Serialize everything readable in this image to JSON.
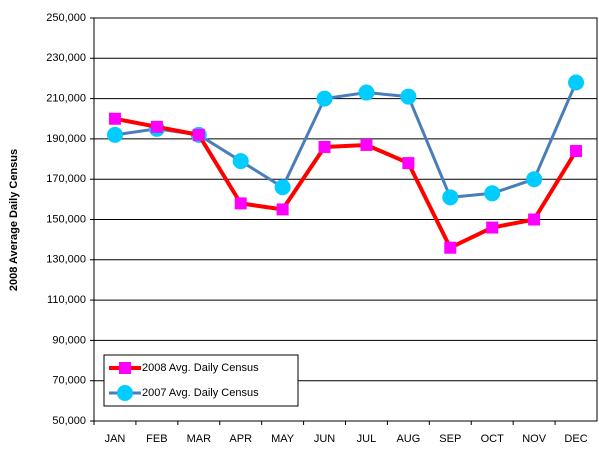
{
  "chart_data": {
    "type": "line",
    "ylabel": "2008 Average Daily Census",
    "categories": [
      "JAN",
      "FEB",
      "MAR",
      "APR",
      "MAY",
      "JUN",
      "JUL",
      "AUG",
      "SEP",
      "OCT",
      "NOV",
      "DEC"
    ],
    "series": [
      {
        "name": "2008 Avg. Daily Census",
        "color": "#ff0000",
        "marker_color": "#ff00ff",
        "marker": "square",
        "values": [
          200000,
          196000,
          192000,
          158000,
          155000,
          186000,
          187000,
          178000,
          136000,
          146000,
          150000,
          184000
        ]
      },
      {
        "name": "2007 Avg. Daily Census",
        "color": "#4a7ebb",
        "marker_color": "#00ccff",
        "marker": "circle",
        "values": [
          192000,
          195000,
          192000,
          179000,
          166000,
          210000,
          213000,
          211000,
          161000,
          163000,
          170000,
          218000
        ]
      }
    ],
    "ylim": [
      50000,
      250000
    ],
    "yticks": [
      {
        "value": 50000,
        "label": "50,000"
      },
      {
        "value": 70000,
        "label": "70,000"
      },
      {
        "value": 90000,
        "label": "90,000"
      },
      {
        "value": 110000,
        "label": "110,000"
      },
      {
        "value": 130000,
        "label": "130,000"
      },
      {
        "value": 150000,
        "label": "150,000"
      },
      {
        "value": 170000,
        "label": "170,000"
      },
      {
        "value": 190000,
        "label": "190,000"
      },
      {
        "value": 210000,
        "label": "210,000"
      },
      {
        "value": 230000,
        "label": "230,000"
      },
      {
        "value": 250000,
        "label": "250,000"
      }
    ],
    "grid": true,
    "legend": "lower left"
  }
}
